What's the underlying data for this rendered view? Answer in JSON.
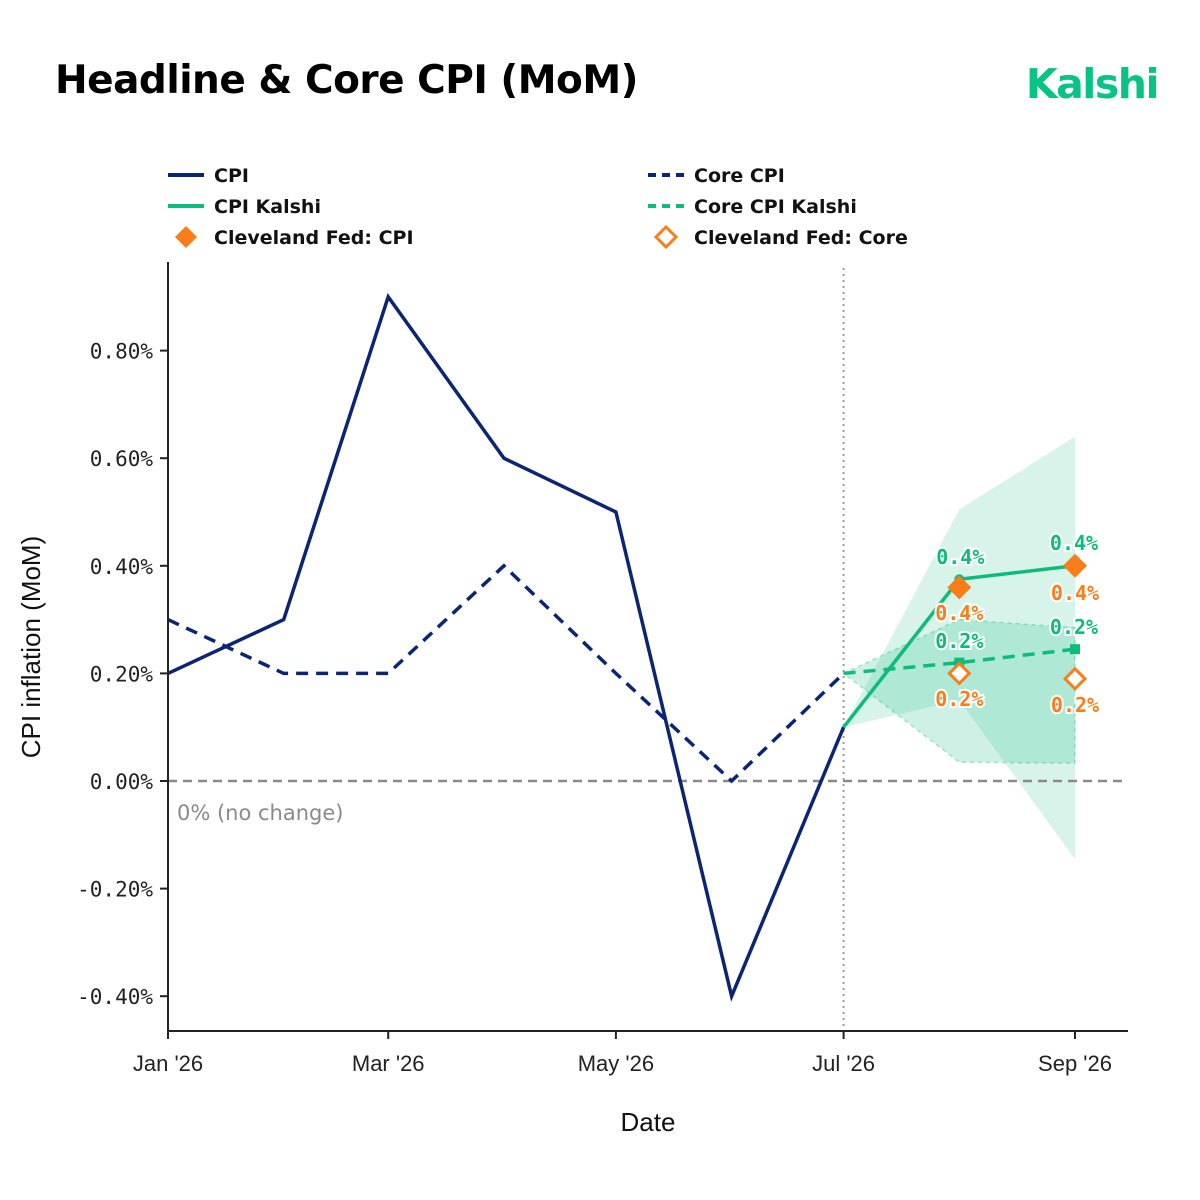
{
  "header": {
    "title": "Headline & Core CPI (MoM)",
    "brand": "Kalshi"
  },
  "colors": {
    "navy": "#0b2574",
    "green": "#0dbb7d",
    "orange": "#f97e1a",
    "band": "#0dbb7d",
    "gray": "#8a8a8a",
    "brand": "#09c285"
  },
  "legend": [
    {
      "label": "CPI",
      "style": "solid-line",
      "color": "navy"
    },
    {
      "label": "Core CPI",
      "style": "dashed-line",
      "color": "navy"
    },
    {
      "label": "CPI Kalshi",
      "style": "solid-line",
      "color": "green"
    },
    {
      "label": "Core CPI Kalshi",
      "style": "dashed-line",
      "color": "green"
    },
    {
      "label": "Cleveland Fed: CPI",
      "style": "filled-diamond",
      "color": "orange"
    },
    {
      "label": "Cleveland Fed: Core",
      "style": "hollow-diamond",
      "color": "orange"
    }
  ],
  "chart_data": {
    "type": "line",
    "xlabel": "Date",
    "ylabel": "CPI inflation (MoM)",
    "x_ticks": [
      "Jan '26",
      "Mar '26",
      "May '26",
      "Jul '26",
      "Sep '26"
    ],
    "y_ticks": [
      "-0.40%",
      "-0.20%",
      "0.00%",
      "0.20%",
      "0.40%",
      "0.60%",
      "0.80%"
    ],
    "ylim": [
      -0.46,
      0.96
    ],
    "xlim": [
      "2026-01-01",
      "2026-09-15"
    ],
    "grid": false,
    "legend_position": "top",
    "reference_line": {
      "y": 0.0,
      "label": "0% (no change)"
    },
    "forecast_start": "2026-07-01",
    "series": [
      {
        "name": "CPI",
        "x": [
          "2026-01-01",
          "2026-02-01",
          "2026-03-01",
          "2026-04-01",
          "2026-05-01",
          "2026-06-01",
          "2026-07-01"
        ],
        "y": [
          0.2,
          0.3,
          0.9,
          0.6,
          0.5,
          -0.4,
          0.1
        ]
      },
      {
        "name": "Core CPI",
        "x": [
          "2026-01-01",
          "2026-02-01",
          "2026-03-01",
          "2026-04-01",
          "2026-05-01",
          "2026-06-01",
          "2026-07-01"
        ],
        "y": [
          0.3,
          0.2,
          0.2,
          0.4,
          0.2,
          0.0,
          0.2
        ]
      },
      {
        "name": "CPI Kalshi",
        "x": [
          "2026-07-01",
          "2026-08-01",
          "2026-09-01"
        ],
        "y": [
          0.1,
          0.375,
          0.4
        ],
        "band_low": [
          0.1,
          0.15,
          -0.145
        ],
        "band_high": [
          0.1,
          0.505,
          0.64
        ]
      },
      {
        "name": "Core CPI Kalshi",
        "x": [
          "2026-07-01",
          "2026-08-01",
          "2026-09-01"
        ],
        "y": [
          0.2,
          0.22,
          0.245
        ],
        "band_low": [
          0.2,
          0.035,
          0.033
        ],
        "band_high": [
          0.2,
          0.3,
          0.285
        ]
      },
      {
        "name": "Cleveland Fed: CPI",
        "x": [
          "2026-08-01",
          "2026-09-01"
        ],
        "y": [
          0.36,
          0.4
        ]
      },
      {
        "name": "Cleveland Fed: Core",
        "x": [
          "2026-08-01",
          "2026-09-01"
        ],
        "y": [
          0.2,
          0.19
        ]
      }
    ],
    "annotations": {
      "kalshi_cpi": [
        "0.4%",
        "0.4%"
      ],
      "kalshi_core": [
        "0.2%",
        "0.2%"
      ],
      "cleveland_cpi": [
        "0.4%",
        "0.4%"
      ],
      "cleveland_core": [
        "0.2%",
        "0.2%"
      ]
    }
  }
}
